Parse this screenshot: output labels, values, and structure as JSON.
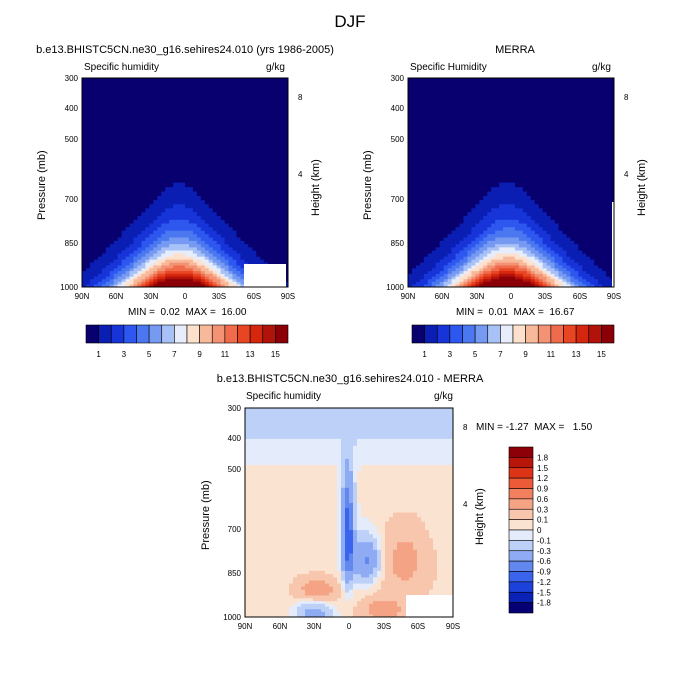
{
  "figure_title": "DJF",
  "colors": {
    "top_scale": [
      "#08006e",
      "#0b1eb4",
      "#1634d8",
      "#2d57ee",
      "#4b78f0",
      "#7699f2",
      "#a8c1f6",
      "#e7edfb",
      "#fde1cd",
      "#f8b89a",
      "#f49274",
      "#ef6b4b",
      "#e84523",
      "#d5260e",
      "#b1120a",
      "#8a0006"
    ],
    "diff_scale": [
      "#070074",
      "#0b22b6",
      "#1d42db",
      "#3a64ec",
      "#6288f0",
      "#8eabf3",
      "#bcd0f8",
      "#e4ecfb",
      "#fbe3d1",
      "#f8c5ad",
      "#f5a385",
      "#f27f5e",
      "#ec5a37",
      "#dd3417",
      "#b8150b",
      "#8e0007"
    ]
  },
  "chart_data": [
    {
      "type": "heatmap",
      "title": "b.e13.BHISTC5CN.ne30_g16.sehires24.010 (yrs 1986-2005)",
      "left_subtitle": "Specific humidity",
      "right_subtitle": "g/kg",
      "ylabel": "Pressure (mb)",
      "y2label": "Height (km)",
      "x_ticks": [
        "90N",
        "60N",
        "30N",
        "0",
        "30S",
        "60S",
        "90S"
      ],
      "y_ticks": [
        "300",
        "400",
        "500",
        "700",
        "850",
        "1000"
      ],
      "y2_ticks": [
        "8",
        "4"
      ],
      "min_max": "MIN =  0.02  MAX =  16.00",
      "levels": [
        "1",
        "3",
        "5",
        "7",
        "9",
        "11",
        "13",
        "15"
      ],
      "max_value": 16.0,
      "peak_lat": 5
    },
    {
      "type": "heatmap",
      "title": "MERRA",
      "left_subtitle": "Specific Humidity",
      "right_subtitle": "g/kg",
      "ylabel": "Pressure (mb)",
      "y2label": "Height (km)",
      "x_ticks": [
        "90N",
        "60N",
        "30N",
        "0",
        "30S",
        "60S",
        "90S"
      ],
      "y_ticks": [
        "300",
        "400",
        "500",
        "700",
        "850",
        "1000"
      ],
      "y2_ticks": [
        "8",
        "4"
      ],
      "min_max": "MIN =  0.01  MAX =  16.67",
      "levels": [
        "1",
        "3",
        "5",
        "7",
        "9",
        "11",
        "13",
        "15"
      ],
      "max_value": 16.67,
      "peak_lat": 3
    },
    {
      "type": "heatmap",
      "title": "b.e13.BHISTC5CN.ne30_g16.sehires24.010 - MERRA",
      "left_subtitle": "Specific humidity",
      "right_subtitle": "g/kg",
      "ylabel": "Pressure (mb)",
      "y2label": "Height (km)",
      "x_ticks": [
        "90N",
        "60N",
        "30N",
        "0",
        "30S",
        "60S",
        "90S"
      ],
      "y_ticks": [
        "300",
        "400",
        "500",
        "700",
        "850",
        "1000"
      ],
      "y2_ticks": [
        "8",
        "4"
      ],
      "min_max": "MIN = -1.27  MAX =   1.50",
      "levels": [
        "1.8",
        "1.5",
        "1.2",
        "0.9",
        "0.6",
        "0.3",
        "0.1",
        "0",
        "-0.1",
        "-0.3",
        "-0.6",
        "-0.9",
        "-1.2",
        "-1.5",
        "-1.8"
      ],
      "min_value": -1.27,
      "max_value": 1.5
    }
  ]
}
